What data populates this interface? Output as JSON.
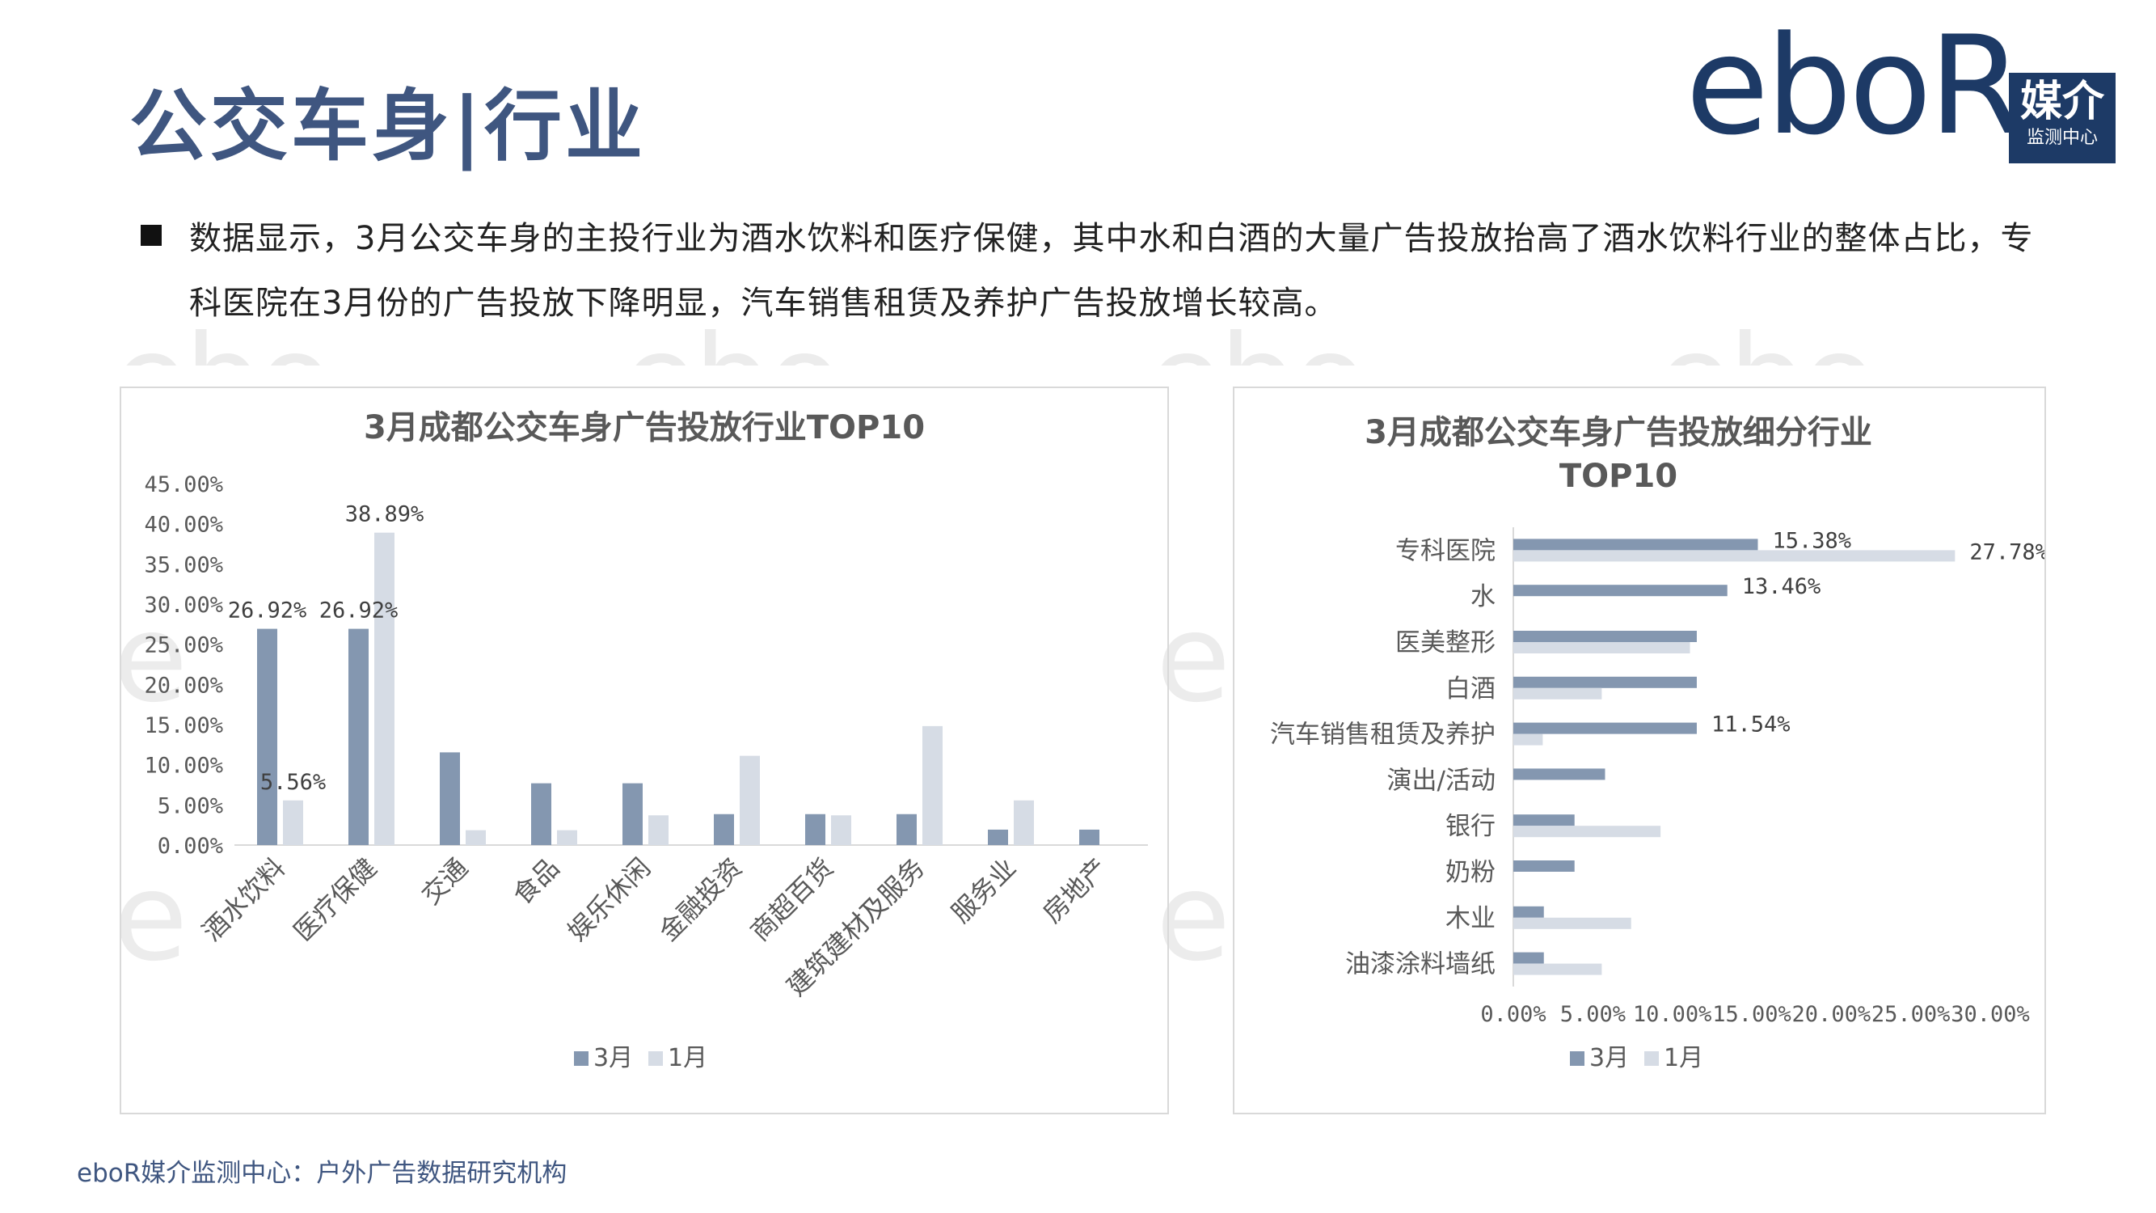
{
  "page": {
    "title": "公交车身|行业",
    "summary": "数据显示，3月公交车身的主投行业为酒水饮料和医疗保健，其中水和白酒的大量广告投放抬高了酒水饮料行业的整体占比，专科医院在3月份的广告投放下降明显，汽车销售租赁及养护广告投放增长较高。",
    "footer": "eboR媒介监测中心：户外广告数据研究机构"
  },
  "logo": {
    "text": "eboR",
    "badge_big": "媒介",
    "badge_small": "监测中心"
  },
  "colors": {
    "march": "#8497b0",
    "january": "#d6dce5",
    "title": "#3f5680",
    "axis": "#d9d9d9"
  },
  "chart_data": [
    {
      "type": "bar",
      "title": "3月成都公交车身广告投放行业TOP10",
      "categories": [
        "酒水饮料",
        "医疗保健",
        "交通",
        "食品",
        "娱乐休闲",
        "金融投资",
        "商超百货",
        "建筑建材及服务",
        "服务业",
        "房地产"
      ],
      "series": [
        {
          "name": "3月",
          "values": [
            26.92,
            26.92,
            11.54,
            7.69,
            7.69,
            3.85,
            3.85,
            3.85,
            1.92,
            1.92
          ]
        },
        {
          "name": "1月",
          "values": [
            5.56,
            38.89,
            1.85,
            1.85,
            3.7,
            11.11,
            3.7,
            14.81,
            5.56,
            0
          ]
        }
      ],
      "ylim": [
        0,
        45
      ],
      "yticks": [
        "0.00%",
        "5.00%",
        "10.00%",
        "15.00%",
        "20.00%",
        "25.00%",
        "30.00%",
        "35.00%",
        "40.00%",
        "45.00%"
      ],
      "data_labels": [
        {
          "series": 0,
          "index": 0,
          "text": "26.92%"
        },
        {
          "series": 0,
          "index": 1,
          "text": "26.92%"
        },
        {
          "series": 1,
          "index": 0,
          "text": "5.56%"
        },
        {
          "series": 1,
          "index": 1,
          "text": "38.89%"
        }
      ],
      "legend": "bottom",
      "grid": false
    },
    {
      "type": "bar",
      "orientation": "horizontal",
      "title": "3月成都公交车身广告投放细分行业",
      "subtitle": "TOP10",
      "categories": [
        "专科医院",
        "水",
        "医美整形",
        "白酒",
        "汽车销售租赁及养护",
        "演出/活动",
        "银行",
        "奶粉",
        "木业",
        "油漆涂料墙纸"
      ],
      "series": [
        {
          "name": "3月",
          "values": [
            15.38,
            13.46,
            11.54,
            11.54,
            11.54,
            5.77,
            3.85,
            3.85,
            1.92,
            1.92
          ]
        },
        {
          "name": "1月",
          "values": [
            27.78,
            0,
            11.11,
            5.56,
            1.85,
            0,
            9.26,
            0,
            7.41,
            5.56
          ]
        }
      ],
      "xlim": [
        0,
        30
      ],
      "xticks": [
        "0.00%",
        "5.00%",
        "10.00%",
        "15.00%",
        "20.00%",
        "25.00%",
        "30.00%"
      ],
      "data_labels": [
        {
          "series": 0,
          "index": 0,
          "text": "15.38%"
        },
        {
          "series": 1,
          "index": 0,
          "text": "27.78%"
        },
        {
          "series": 0,
          "index": 1,
          "text": "13.46%"
        },
        {
          "series": 0,
          "index": 4,
          "text": "11.54%"
        }
      ],
      "legend": "bottom",
      "grid": false
    }
  ]
}
